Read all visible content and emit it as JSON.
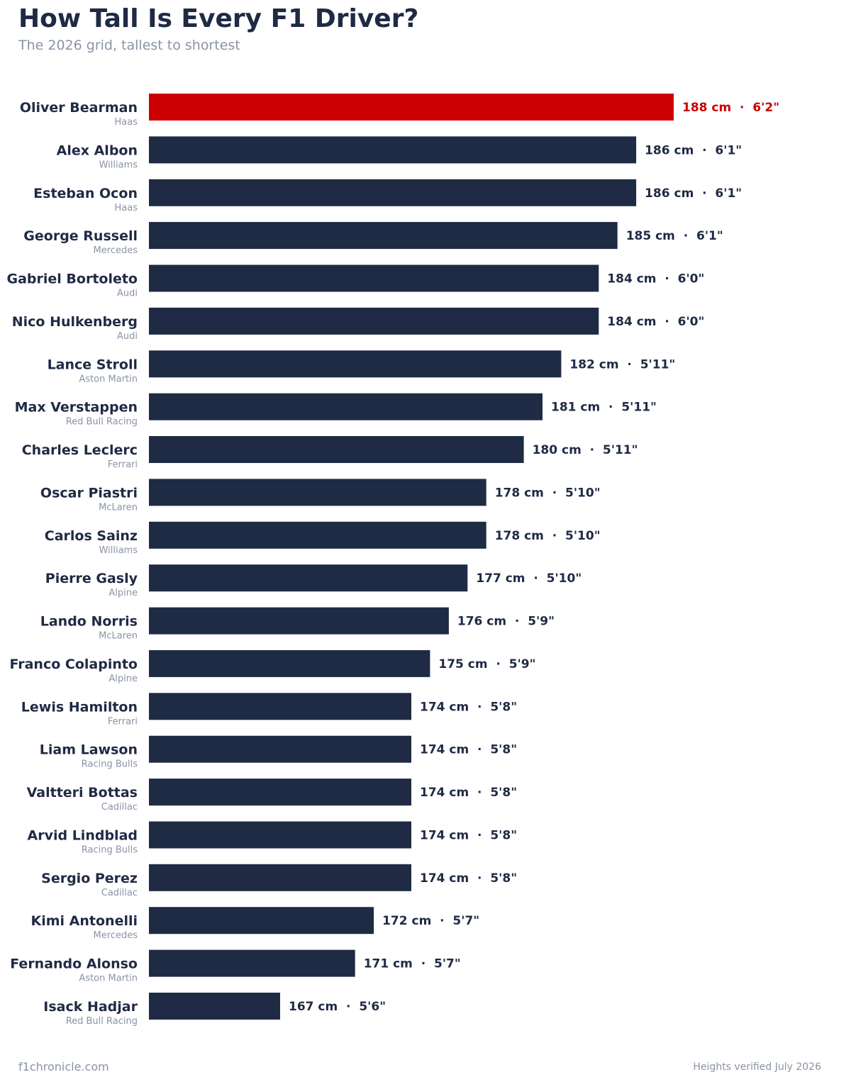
{
  "header": {
    "title": "How Tall Is Every F1 Driver?",
    "subtitle": "The 2026 grid, tallest to shortest"
  },
  "footer": {
    "source": "f1chronicle.com",
    "note": "Heights verified July 2026"
  },
  "colors": {
    "highlight": "#cc0000",
    "bar": "#1f2a44",
    "muted": "#8a93a6"
  },
  "chart_data": {
    "type": "bar",
    "orientation": "horizontal",
    "unit": "cm",
    "grid": false,
    "legend": "none",
    "highlighted": "Oliver Bearman",
    "title": "How Tall Is Every F1 Driver?",
    "subtitle": "The 2026 grid, tallest to shortest",
    "categories": [
      "Oliver Bearman",
      "Alex Albon",
      "Esteban Ocon",
      "George Russell",
      "Gabriel Bortoleto",
      "Nico Hulkenberg",
      "Lance Stroll",
      "Max Verstappen",
      "Charles Leclerc",
      "Oscar Piastri",
      "Carlos Sainz",
      "Pierre Gasly",
      "Lando Norris",
      "Franco Colapinto",
      "Lewis Hamilton",
      "Liam Lawson",
      "Valtteri Bottas",
      "Arvid Lindblad",
      "Sergio Perez",
      "Kimi Antonelli",
      "Fernando Alonso",
      "Isack Hadjar"
    ],
    "teams": [
      "Haas",
      "Williams",
      "Haas",
      "Mercedes",
      "Audi",
      "Audi",
      "Aston Martin",
      "Red Bull Racing",
      "Ferrari",
      "McLaren",
      "Williams",
      "Alpine",
      "McLaren",
      "Alpine",
      "Ferrari",
      "Racing Bulls",
      "Cadillac",
      "Racing Bulls",
      "Cadillac",
      "Mercedes",
      "Aston Martin",
      "Red Bull Racing"
    ],
    "values": [
      188,
      186,
      186,
      185,
      184,
      184,
      182,
      181,
      180,
      178,
      178,
      177,
      176,
      175,
      174,
      174,
      174,
      174,
      174,
      172,
      171,
      167
    ],
    "data_labels": [
      "188 cm  ·  6'2\"",
      "186 cm  ·  6'1\"",
      "186 cm  ·  6'1\"",
      "185 cm  ·  6'1\"",
      "184 cm  ·  6'0\"",
      "184 cm  ·  6'0\"",
      "182 cm  ·  5'11\"",
      "181 cm  ·  5'11\"",
      "180 cm  ·  5'11\"",
      "178 cm  ·  5'10\"",
      "178 cm  ·  5'10\"",
      "177 cm  ·  5'10\"",
      "176 cm  ·  5'9\"",
      "175 cm  ·  5'9\"",
      "174 cm  ·  5'8\"",
      "174 cm  ·  5'8\"",
      "174 cm  ·  5'8\"",
      "174 cm  ·  5'8\"",
      "174 cm  ·  5'8\"",
      "172 cm  ·  5'7\"",
      "171 cm  ·  5'7\"",
      "167 cm  ·  5'6\""
    ],
    "xlim": [
      160,
      188
    ]
  }
}
